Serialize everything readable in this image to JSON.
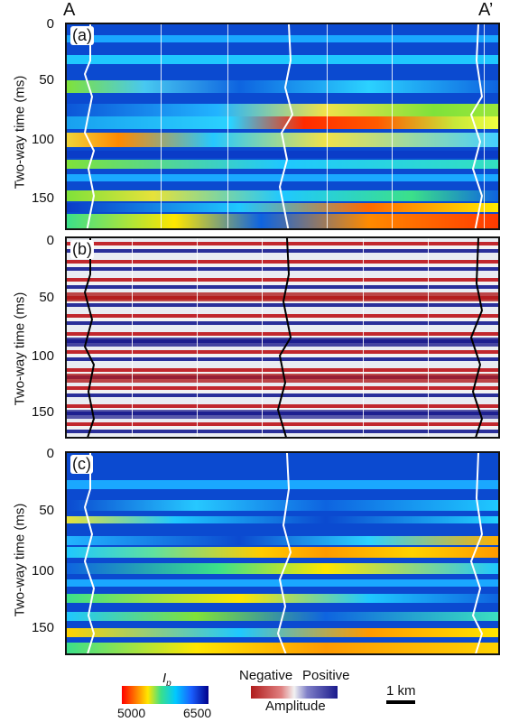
{
  "section": {
    "left": "A",
    "right": "A’"
  },
  "axis_label": "Two-way time (ms)",
  "ticks": [
    "0",
    "50",
    "100",
    "150"
  ],
  "panels": [
    {
      "label": "(a)"
    },
    {
      "label": "(b)"
    },
    {
      "label": "(c)"
    }
  ],
  "legend": {
    "ip_title": "I",
    "ip_sub": "p",
    "ip_min": "5000",
    "ip_max": "6500",
    "neg": "Negative",
    "pos": "Positive",
    "amp": "Amplitude",
    "scale": "1 km"
  },
  "colors": {
    "ip_low": "#ff0000",
    "ip_mid": "#00c8ff",
    "ip_high": "#00008b",
    "amp_neg": "#b01c1c",
    "amp_pos": "#1a1a8c"
  }
}
